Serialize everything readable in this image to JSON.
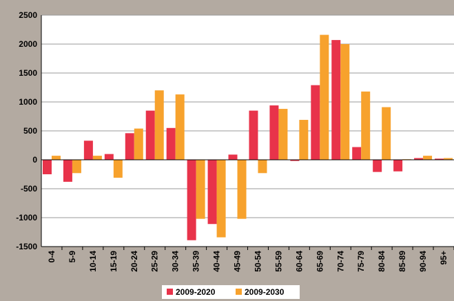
{
  "chart_data": {
    "type": "bar",
    "categories": [
      "0-4",
      "5-9",
      "10-14",
      "15-19",
      "20-24",
      "25-29",
      "30-34",
      "35-39",
      "40-44",
      "45-49",
      "50-54",
      "55-59",
      "60-64",
      "65-69",
      "70-74",
      "75-79",
      "80-84",
      "85-89",
      "90-94",
      "95+"
    ],
    "series": [
      {
        "name": "2009-2020",
        "color": "#e8334a",
        "values": [
          -250,
          -380,
          330,
          100,
          460,
          850,
          550,
          -1390,
          -1110,
          90,
          850,
          940,
          -20,
          1290,
          2070,
          220,
          -210,
          -200,
          30,
          20
        ]
      },
      {
        "name": "2009-2030",
        "color": "#f7a22d",
        "values": [
          70,
          -230,
          70,
          -310,
          540,
          1200,
          1130,
          -1020,
          -1340,
          -1020,
          -230,
          880,
          690,
          2160,
          2000,
          1180,
          910,
          10,
          70,
          30
        ]
      }
    ],
    "ylim": [
      -1500,
      2500
    ],
    "yticks": [
      -1500,
      -1000,
      -500,
      0,
      500,
      1000,
      1500,
      2000,
      2500
    ],
    "grid": true,
    "legend": "bottom"
  }
}
